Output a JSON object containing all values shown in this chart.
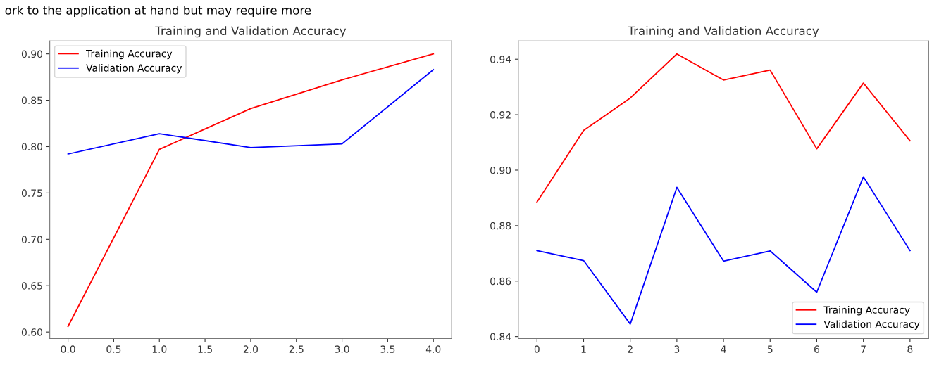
{
  "chart_data": [
    {
      "type": "line",
      "title": "Training and Validation Accuracy",
      "x": [
        0,
        1,
        2,
        3,
        4
      ],
      "series": [
        {
          "name": "Training Accuracy",
          "color": "#ff0000",
          "values": [
            0.606,
            0.797,
            0.841,
            0.872,
            0.9
          ]
        },
        {
          "name": "Validation Accuracy",
          "color": "#0000ff",
          "values": [
            0.792,
            0.814,
            0.799,
            0.803,
            0.883
          ]
        }
      ],
      "xlim": [
        -0.2,
        4.2
      ],
      "xticks": [
        {
          "value": 0,
          "label": "0.0"
        },
        0.5,
        {
          "value": 1,
          "label": "1.0"
        },
        1.5,
        {
          "value": 2,
          "label": "2.0"
        },
        2.5,
        {
          "value": 3,
          "label": "3.0"
        },
        3.5,
        {
          "value": 4,
          "label": "4.0"
        }
      ],
      "ylim": [
        0.593,
        0.914
      ],
      "yticks": [
        {
          "value": 0.6,
          "label": "0.60"
        },
        0.65,
        {
          "value": 0.7,
          "label": "0.70"
        },
        0.75,
        {
          "value": 0.8,
          "label": "0.80"
        },
        0.85,
        {
          "value": 0.9,
          "label": "0.90"
        }
      ],
      "legend": "top left",
      "grid": false,
      "annotations": [
        "ork to the application at hand but may require more"
      ]
    },
    {
      "type": "line",
      "title": "Training and Validation Accuracy",
      "x": [
        0,
        1,
        2,
        3,
        4,
        5,
        6,
        7,
        8
      ],
      "series": [
        {
          "name": "Training Accuracy",
          "color": "#ff0000",
          "values": [
            0.8885,
            0.9143,
            0.926,
            0.9419,
            0.9325,
            0.9361,
            0.9077,
            0.9314,
            0.9106
          ]
        },
        {
          "name": "Validation Accuracy",
          "color": "#0000ff",
          "values": [
            0.871,
            0.8674,
            0.8445,
            0.8938,
            0.8672,
            0.8709,
            0.856,
            0.8976,
            0.871
          ]
        }
      ],
      "xlim": [
        -0.4,
        8.4
      ],
      "xticks": [
        0,
        1,
        2,
        3,
        4,
        5,
        6,
        7,
        8
      ],
      "ylim": [
        0.8393,
        0.9466
      ],
      "yticks": [
        {
          "value": 0.84,
          "label": "0.84"
        },
        {
          "value": 0.86,
          "label": "0.86"
        },
        {
          "value": 0.88,
          "label": "0.88"
        },
        {
          "value": 0.9,
          "label": "0.90"
        },
        {
          "value": 0.92,
          "label": "0.92"
        },
        {
          "value": 0.94,
          "label": "0.94"
        }
      ],
      "legend": "lower right",
      "grid": false
    }
  ]
}
